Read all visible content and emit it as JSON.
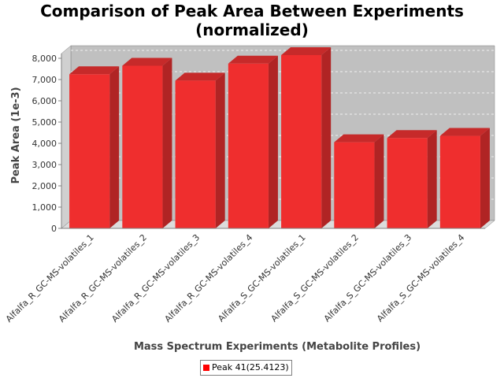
{
  "chart_data": {
    "type": "bar",
    "title_line1": "Comparison of Peak Area Between Experiments",
    "title_line2": "(normalized)",
    "xlabel": "Mass Spectrum Experiments (Metabolite Profiles)",
    "ylabel": "Peak Area (1e-3)",
    "ylim": [
      0,
      8000
    ],
    "yticks": [
      0,
      1000,
      2000,
      3000,
      4000,
      5000,
      6000,
      7000,
      8000
    ],
    "ytick_labels": [
      "0",
      "1,000",
      "2,000",
      "3,000",
      "4,000",
      "5,000",
      "6,000",
      "7,000",
      "8,000"
    ],
    "grid": true,
    "legend_position": "bottom-center",
    "categories": [
      "Alfalfa_R_GC-MS-volatiles_1",
      "Alfalfa_R_GC-MS-volatiles_2",
      "Alfalfa_R_GC-MS-volatiles_3",
      "Alfalfa_R_GC-MS-volatiles_4",
      "Alfalfa_S_GC-MS-volatiles_1",
      "Alfalfa_S_GC-MS-volatiles_2",
      "Alfalfa_S_GC-MS-volatiles_3",
      "Alfalfa_S_GC-MS-volatiles_4"
    ],
    "series": [
      {
        "name": "Peak 41(25.4123)",
        "color": "#ff0000",
        "values": [
          7250,
          7650,
          6950,
          7750,
          8150,
          4050,
          4250,
          4350
        ]
      }
    ]
  }
}
